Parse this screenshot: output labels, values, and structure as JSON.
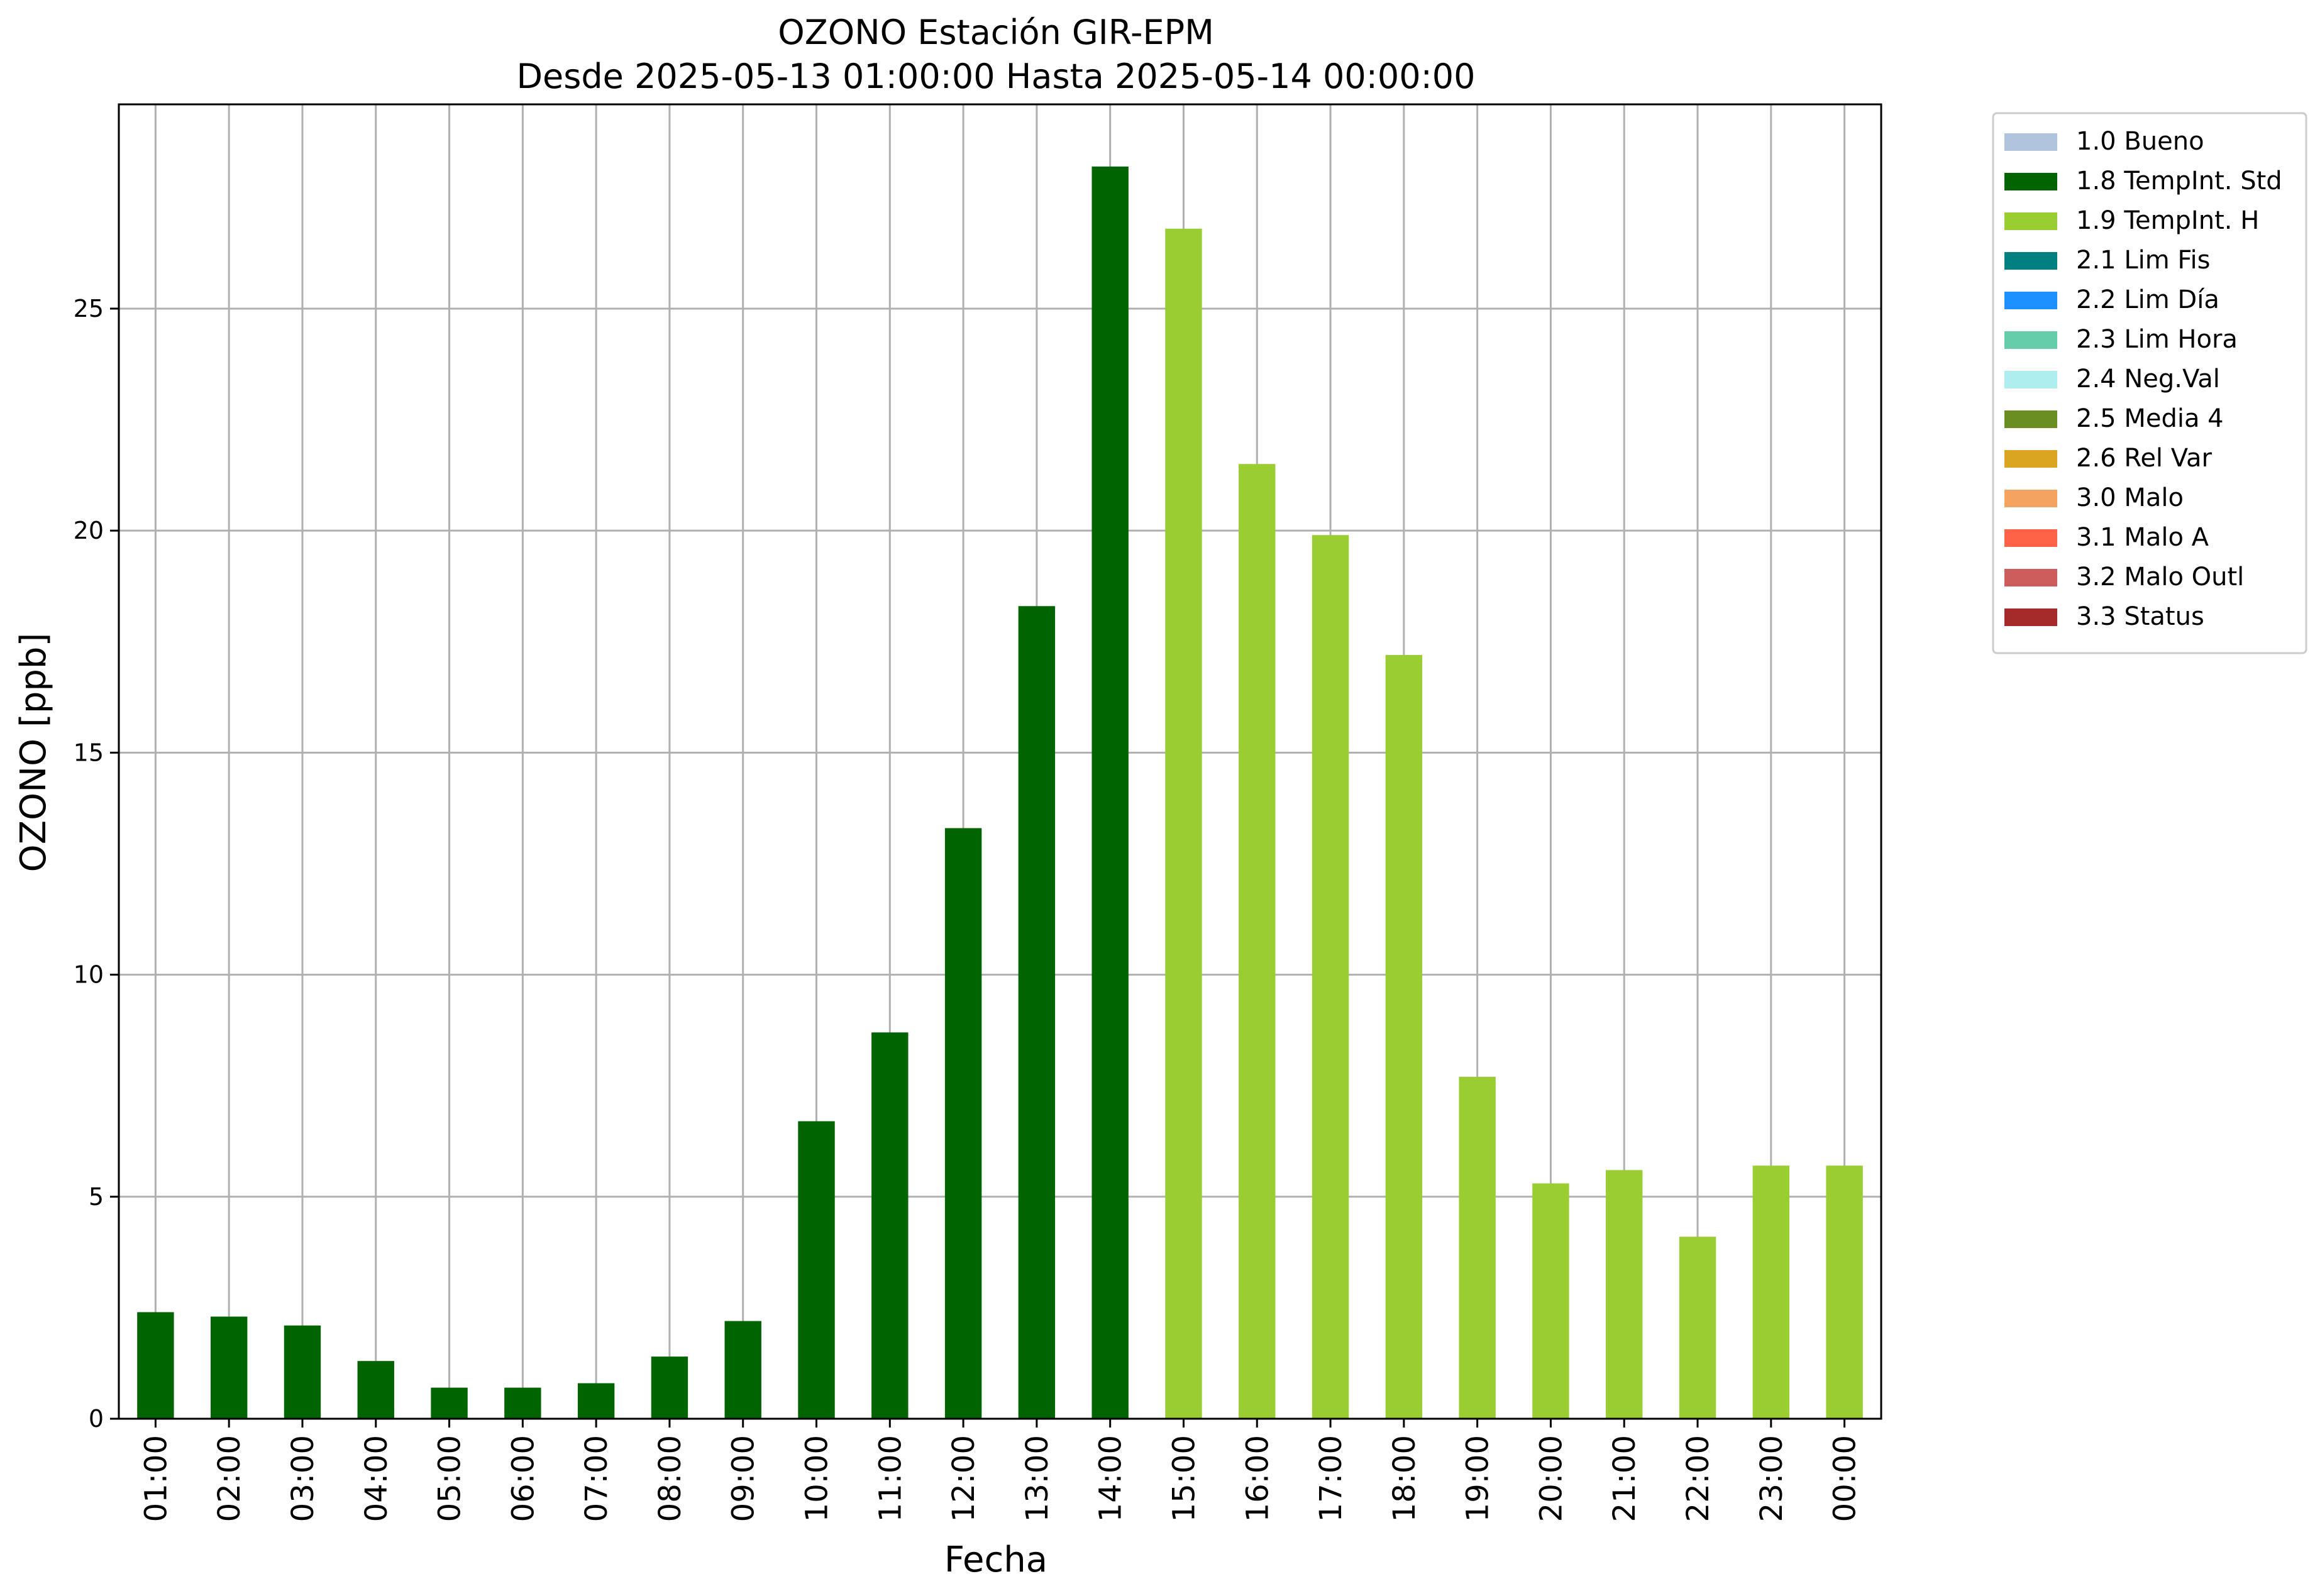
{
  "chart_data": {
    "type": "bar",
    "title": "OZONO Estación GIR-EPM",
    "subtitle": "Desde 2025-05-13 01:00:00 Hasta 2025-05-14 00:00:00",
    "xlabel": "Fecha",
    "ylabel": "OZONO [ppb]",
    "ylim": [
      0,
      29.6
    ],
    "yticks": [
      0,
      5,
      10,
      15,
      20,
      25
    ],
    "grid": true,
    "legend_position": "outside-top-right",
    "categories": [
      "01:00",
      "02:00",
      "03:00",
      "04:00",
      "05:00",
      "06:00",
      "07:00",
      "08:00",
      "09:00",
      "10:00",
      "11:00",
      "12:00",
      "13:00",
      "14:00",
      "15:00",
      "16:00",
      "17:00",
      "18:00",
      "19:00",
      "20:00",
      "21:00",
      "22:00",
      "23:00",
      "00:00"
    ],
    "values": [
      2.4,
      2.3,
      2.1,
      1.3,
      0.7,
      0.7,
      0.8,
      1.4,
      2.2,
      6.7,
      8.7,
      13.3,
      18.3,
      28.2,
      26.8,
      21.5,
      19.9,
      17.2,
      7.7,
      5.3,
      5.6,
      4.1,
      5.7,
      5.7
    ],
    "flags": [
      "1.8 TempInt. Std",
      "1.8 TempInt. Std",
      "1.8 TempInt. Std",
      "1.8 TempInt. Std",
      "1.8 TempInt. Std",
      "1.8 TempInt. Std",
      "1.8 TempInt. Std",
      "1.8 TempInt. Std",
      "1.8 TempInt. Std",
      "1.8 TempInt. Std",
      "1.8 TempInt. Std",
      "1.8 TempInt. Std",
      "1.8 TempInt. Std",
      "1.8 TempInt. Std",
      "1.9 TempInt. H",
      "1.9 TempInt. H",
      "1.9 TempInt. H",
      "1.9 TempInt. H",
      "1.9 TempInt. H",
      "1.9 TempInt. H",
      "1.9 TempInt. H",
      "1.9 TempInt. H",
      "1.9 TempInt. H",
      "1.9 TempInt. H"
    ],
    "legend": [
      {
        "label": "1.0 Bueno",
        "color": "#b0c4de"
      },
      {
        "label": "1.8 TempInt. Std",
        "color": "#006400"
      },
      {
        "label": "1.9 TempInt. H",
        "color": "#9acd32"
      },
      {
        "label": "2.1 Lim Fis",
        "color": "#008080"
      },
      {
        "label": "2.2 Lim Día",
        "color": "#1e90ff"
      },
      {
        "label": "2.3 Lim Hora",
        "color": "#66cdaa"
      },
      {
        "label": "2.4 Neg.Val",
        "color": "#afeeee"
      },
      {
        "label": "2.5 Media 4",
        "color": "#6b8e23"
      },
      {
        "label": "2.6 Rel Var",
        "color": "#daa520"
      },
      {
        "label": "3.0 Malo",
        "color": "#f4a460"
      },
      {
        "label": "3.1 Malo A",
        "color": "#ff6347"
      },
      {
        "label": "3.2 Malo Outl",
        "color": "#cd5c5c"
      },
      {
        "label": "3.3 Status",
        "color": "#a52a2a"
      }
    ]
  }
}
